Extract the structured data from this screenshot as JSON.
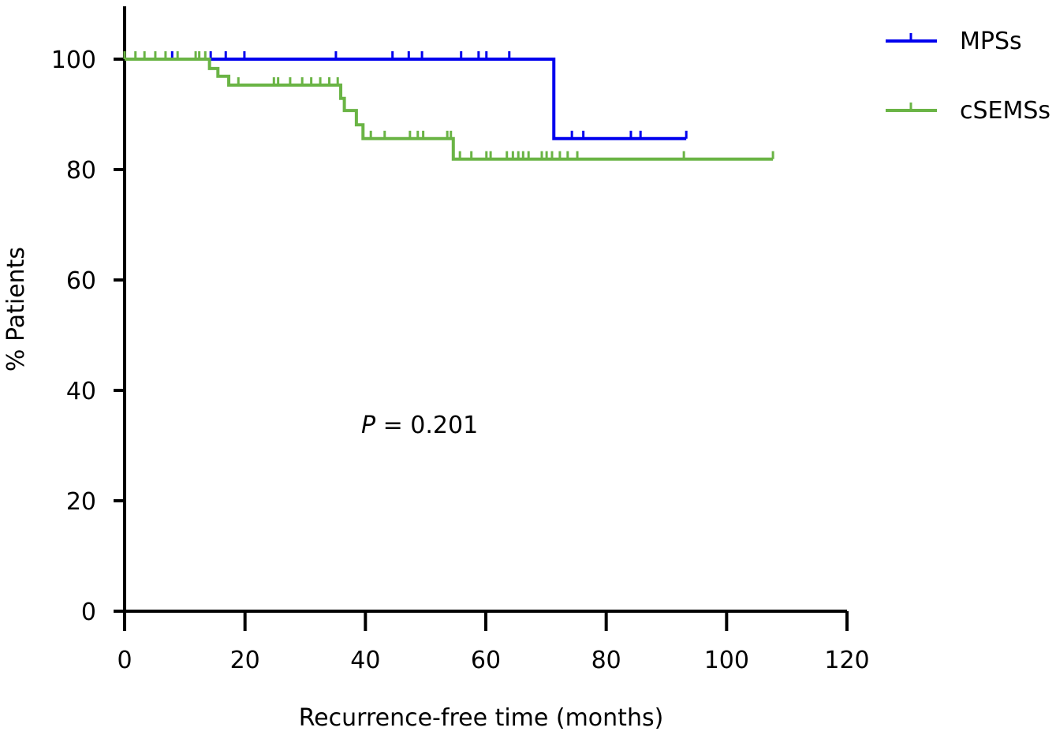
{
  "chart_data": {
    "type": "line",
    "subtype": "kaplan-meier",
    "title": "",
    "xlabel": "Recurrence-free time (months)",
    "ylabel": "% Patients",
    "xlim": [
      0,
      120
    ],
    "ylim": [
      0,
      100
    ],
    "xticks": [
      "0",
      "20",
      "40",
      "60",
      "80",
      "100",
      "120"
    ],
    "yticks": [
      "0",
      "20",
      "40",
      "60",
      "80",
      "100"
    ],
    "annotation": {
      "prefix": "P",
      "text": " = 0.201",
      "x": 40,
      "y": 34
    },
    "legend_placement": "top-right",
    "series": [
      {
        "name": "MPSs",
        "color": "#0000ee",
        "steps": [
          [
            0,
            100
          ],
          [
            71.3,
            85.6
          ],
          [
            93.3,
            85.6
          ]
        ],
        "censored": [
          7.9,
          14.3,
          16.8,
          19.9,
          35.1,
          44.5,
          47.2,
          49.4,
          55.9,
          58.8,
          60.1,
          63.9,
          74.3,
          76.2,
          84.1,
          85.7,
          93.3
        ]
      },
      {
        "name": "cSEMSs",
        "color": "#6ab445",
        "steps": [
          [
            0,
            100
          ],
          [
            14.1,
            98.3
          ],
          [
            15.5,
            96.9
          ],
          [
            17.3,
            95.3
          ],
          [
            35.9,
            92.9
          ],
          [
            36.5,
            90.7
          ],
          [
            38.5,
            88.1
          ],
          [
            39.6,
            85.6
          ],
          [
            54.6,
            81.9
          ],
          [
            107.7,
            81.9
          ]
        ],
        "censored": [
          0,
          1.8,
          3.3,
          5.1,
          6.8,
          8.8,
          11.8,
          12.4,
          13.4,
          18.9,
          24.8,
          25.5,
          27.5,
          29.5,
          31,
          32.5,
          34,
          35.4,
          40.9,
          43.2,
          47.4,
          48.7,
          49.6,
          53.6,
          54.2,
          55.7,
          57.6,
          60.1,
          60.8,
          63.5,
          64.5,
          65.4,
          66.2,
          67.1,
          69.3,
          70.1,
          71,
          72.3,
          73.6,
          75.2,
          92.9,
          107.7
        ]
      }
    ]
  }
}
